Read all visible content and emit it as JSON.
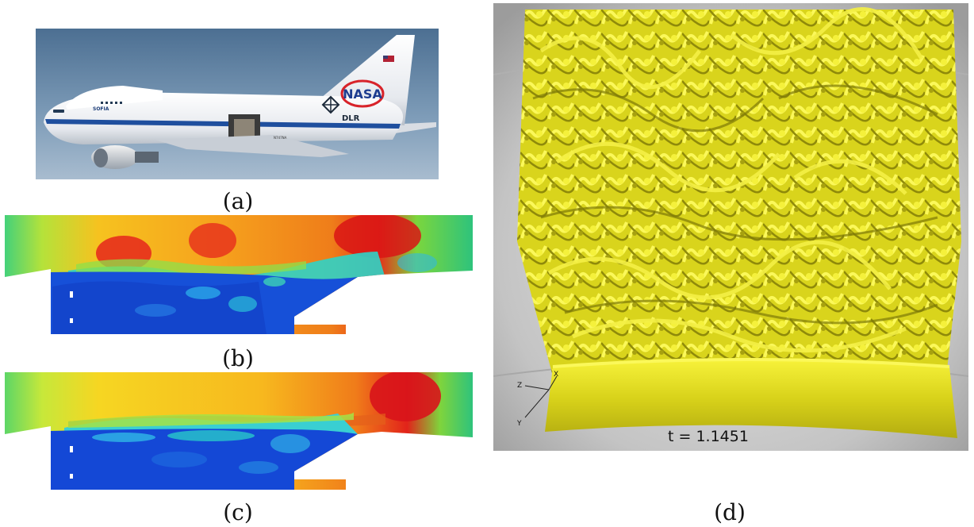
{
  "figure": {
    "panels": [
      {
        "id": "a",
        "caption": "(a)"
      },
      {
        "id": "b",
        "caption": "(b)"
      },
      {
        "id": "c",
        "caption": "(c)"
      },
      {
        "id": "d",
        "caption": "(d)"
      }
    ],
    "panel_a": {
      "tail_logo": "NASA",
      "tail_sublogo": "DLR",
      "fuselage_text": "SOFIA",
      "registration": "N747NA"
    },
    "panel_d": {
      "time_label": "t = 1.1451",
      "axes": {
        "z": "Z",
        "y": "Y",
        "x": "X"
      },
      "isosurface_color": "#f2ef1c"
    }
  }
}
